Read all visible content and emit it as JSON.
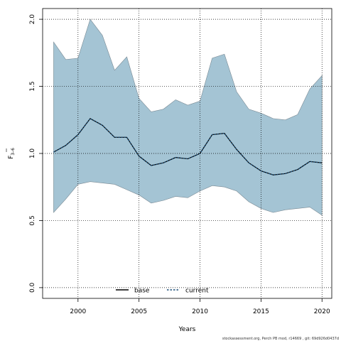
{
  "chart_data": {
    "type": "area",
    "xlabel": "Years",
    "ylabel": "F",
    "ylabel_sub": "3–6",
    "xlim": [
      1997.1,
      2020.8
    ],
    "ylim": [
      -0.08,
      2.08
    ],
    "x_ticks": [
      2000,
      2005,
      2010,
      2015,
      2020
    ],
    "y_ticks": [
      0.0,
      0.5,
      1.0,
      1.5,
      2.0
    ],
    "x_tick_labels": [
      "2000",
      "2005",
      "2010",
      "2015",
      "2020"
    ],
    "y_tick_labels": [
      "0.0",
      "0.5",
      "1.0",
      "1.5",
      "2.0"
    ],
    "grid": true,
    "legend_position": "bottom-center",
    "x": [
      1998,
      1999,
      2000,
      2001,
      2002,
      2003,
      2004,
      2005,
      2006,
      2007,
      2008,
      2009,
      2010,
      2011,
      2012,
      2013,
      2014,
      2015,
      2016,
      2017,
      2018,
      2019,
      2020
    ],
    "band": {
      "upper": [
        1.83,
        1.7,
        1.71,
        2.0,
        1.88,
        1.62,
        1.72,
        1.41,
        1.31,
        1.33,
        1.4,
        1.36,
        1.39,
        1.71,
        1.74,
        1.46,
        1.33,
        1.3,
        1.26,
        1.25,
        1.29,
        1.48,
        1.58
      ],
      "lower": [
        0.56,
        0.66,
        0.77,
        0.79,
        0.78,
        0.77,
        0.73,
        0.69,
        0.63,
        0.65,
        0.68,
        0.67,
        0.72,
        0.76,
        0.75,
        0.72,
        0.64,
        0.59,
        0.56,
        0.58,
        0.59,
        0.6,
        0.54
      ],
      "color": "#a4c4d4",
      "edge_color": "#7a8a94"
    },
    "series": [
      {
        "name": "base",
        "values": [
          1.01,
          1.06,
          1.14,
          1.26,
          1.21,
          1.12,
          1.12,
          0.98,
          0.91,
          0.93,
          0.97,
          0.96,
          1.0,
          1.14,
          1.15,
          1.03,
          0.93,
          0.87,
          0.84,
          0.85,
          0.88,
          0.94,
          0.93
        ],
        "color": "#000000",
        "style": "solid"
      },
      {
        "name": "current",
        "values": [
          1.01,
          1.06,
          1.14,
          1.26,
          1.21,
          1.12,
          1.12,
          0.98,
          0.91,
          0.93,
          0.97,
          0.96,
          1.0,
          1.14,
          1.15,
          1.03,
          0.93,
          0.87,
          0.84,
          0.85,
          0.88,
          0.94,
          0.93
        ],
        "color": "#1a4e78",
        "style": "dashed"
      }
    ]
  },
  "legend": {
    "items": [
      {
        "label": "base",
        "color": "#000000",
        "style": "solid"
      },
      {
        "label": "current",
        "color": "#1a4e78",
        "style": "dashed"
      }
    ]
  },
  "footer": {
    "text": "stockassessment.org, Perch PB mod, r14669 , git: 69d926d0437d"
  }
}
